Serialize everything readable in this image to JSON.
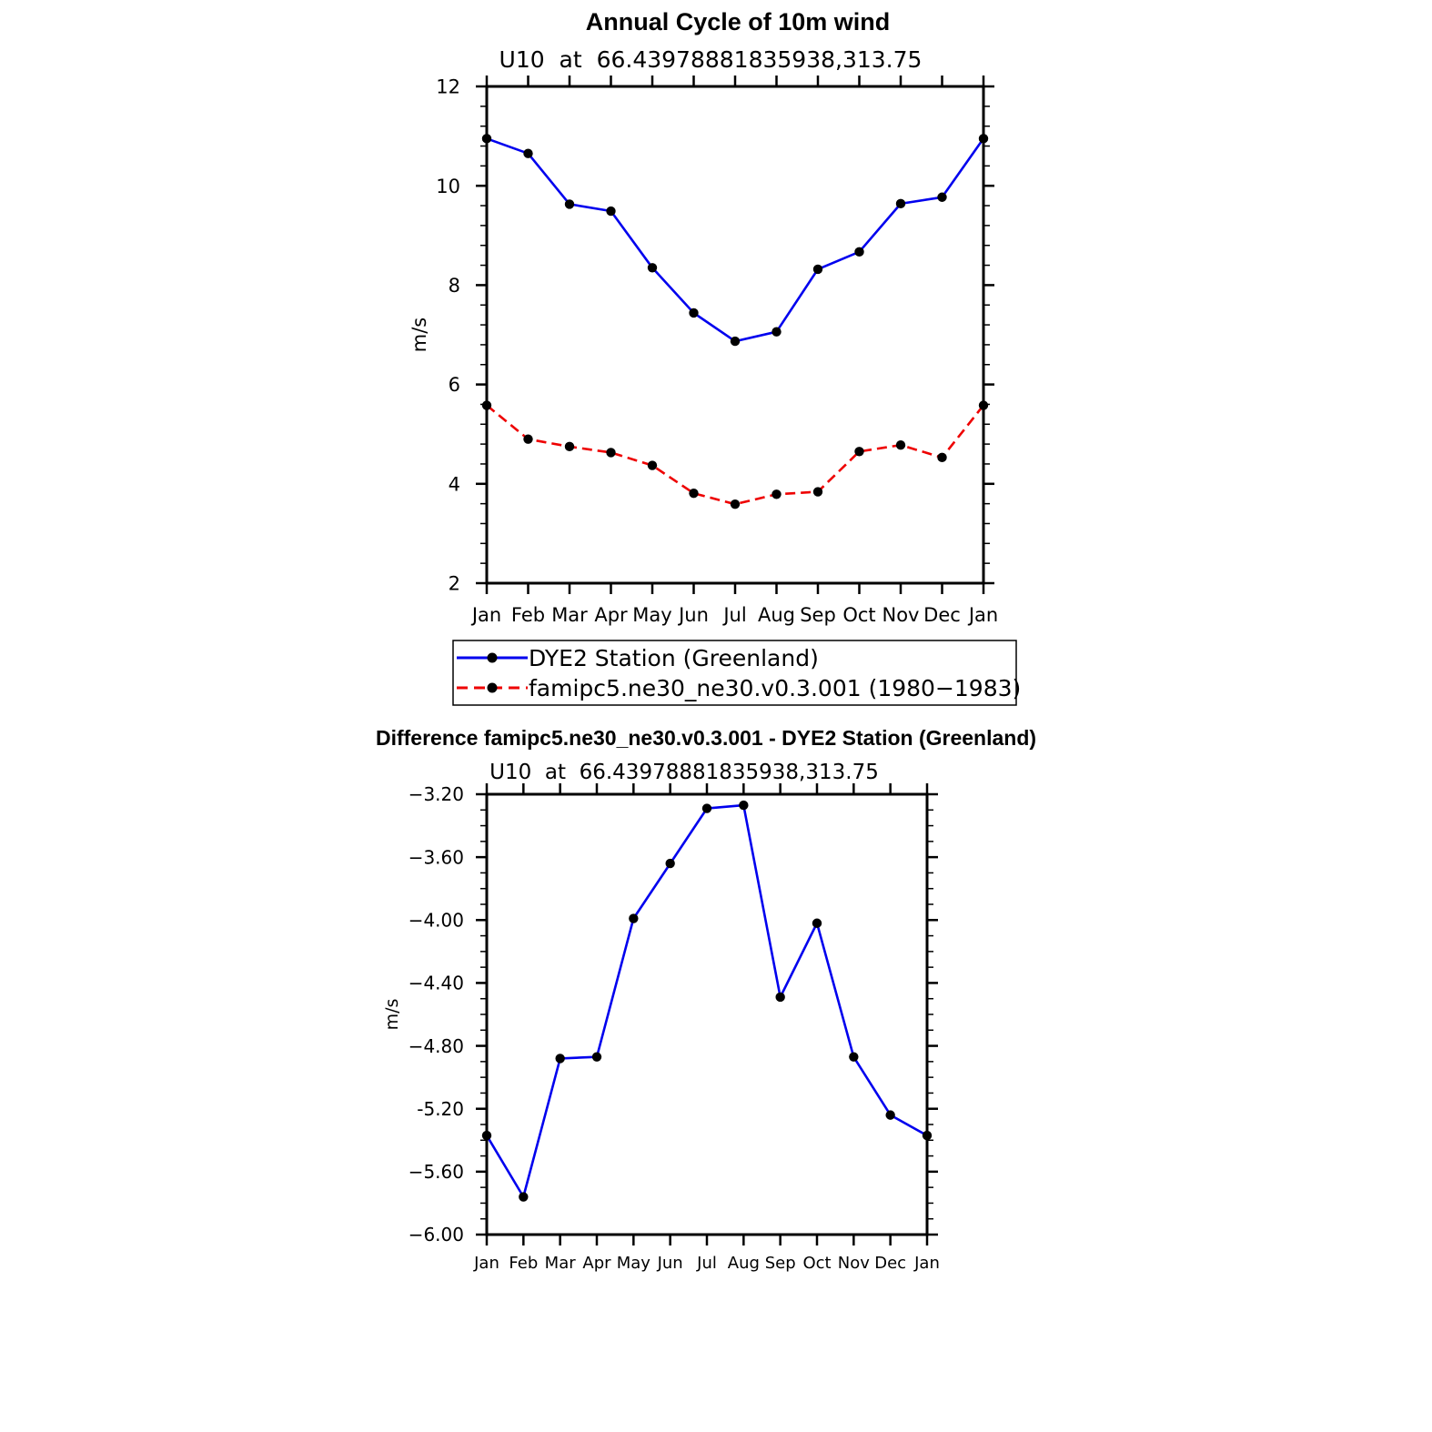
{
  "chart_data": [
    {
      "type": "line",
      "title": "Annual Cycle of 10m wind",
      "subtitle": "U10  at  66.43978881835938,313.75",
      "ylabel": "m/s",
      "xlabel": "",
      "categories": [
        "Jan",
        "Feb",
        "Mar",
        "Apr",
        "May",
        "Jun",
        "Jul",
        "Aug",
        "Sep",
        "Oct",
        "Nov",
        "Dec",
        "Jan"
      ],
      "ylim": [
        2,
        12
      ],
      "yticks": [
        "2",
        "4",
        "6",
        "8",
        "10",
        "12"
      ],
      "ytick_values": [
        2,
        4,
        6,
        8,
        10,
        12
      ],
      "series": [
        {
          "name": "DYE2 Station (Greenland)",
          "color": "#0000ee",
          "dash": "solid",
          "values": [
            10.95,
            10.65,
            9.63,
            9.49,
            8.35,
            7.44,
            6.87,
            7.06,
            8.32,
            8.67,
            9.64,
            9.77,
            10.95
          ]
        },
        {
          "name": "famipc5.ne30_ne30.v0.3.001 (1980−1983)",
          "color": "#ee0000",
          "dash": "dashed",
          "values": [
            5.58,
            4.9,
            4.75,
            4.63,
            4.37,
            3.81,
            3.59,
            3.79,
            3.84,
            4.65,
            4.78,
            4.53,
            5.58
          ]
        }
      ],
      "legend_position": "bottom"
    },
    {
      "type": "line",
      "title": "Difference famipc5.ne30_ne30.v0.3.001 - DYE2 Station (Greenland)",
      "subtitle": "U10  at  66.43978881835938,313.75",
      "ylabel": "m/s",
      "xlabel": "",
      "categories": [
        "Jan",
        "Feb",
        "Mar",
        "Apr",
        "May",
        "Jun",
        "Jul",
        "Aug",
        "Sep",
        "Oct",
        "Nov",
        "Dec",
        "Jan"
      ],
      "ylim": [
        -6.0,
        -3.2
      ],
      "yticks": [
        "−3.20",
        "−3.60",
        "−4.00",
        "−4.40",
        "−4.80",
        "-5.20",
        "−5.60",
        "−6.00"
      ],
      "ytick_values": [
        -3.2,
        -3.6,
        -4.0,
        -4.4,
        -4.8,
        -5.2,
        -5.6,
        -6.0
      ],
      "series": [
        {
          "name": "Difference",
          "color": "#0000ee",
          "dash": "solid",
          "values": [
            -5.37,
            -5.76,
            -4.88,
            -4.87,
            -3.99,
            -3.64,
            -3.29,
            -3.27,
            -4.49,
            -4.02,
            -4.87,
            -5.24,
            -5.37
          ]
        }
      ]
    }
  ]
}
